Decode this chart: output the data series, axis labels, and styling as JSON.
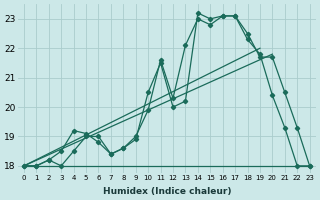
{
  "xlabel": "Humidex (Indice chaleur)",
  "bg_color": "#cce8e8",
  "line_color": "#1a6b5a",
  "grid_color": "#aacccc",
  "xlim": [
    -0.5,
    23.5
  ],
  "ylim": [
    17.75,
    23.5
  ],
  "xticks": [
    0,
    1,
    2,
    3,
    4,
    5,
    6,
    7,
    8,
    9,
    10,
    11,
    12,
    13,
    14,
    15,
    16,
    17,
    18,
    19,
    20,
    21,
    22,
    23
  ],
  "yticks": [
    18,
    19,
    20,
    21,
    22,
    23
  ],
  "series1_x": [
    0,
    1,
    2,
    3,
    4,
    5,
    6,
    7,
    8,
    9,
    10,
    11,
    12,
    13,
    14,
    15,
    16,
    17,
    18,
    19,
    20,
    21,
    22,
    23
  ],
  "series1_y": [
    18.0,
    18.0,
    18.2,
    18.0,
    18.5,
    19.0,
    19.0,
    18.4,
    18.6,
    18.9,
    20.5,
    21.5,
    20.0,
    20.2,
    23.2,
    23.0,
    23.1,
    23.1,
    22.3,
    21.8,
    20.4,
    19.3,
    18.0,
    18.0
  ],
  "series2_x": [
    0,
    1,
    2,
    3,
    4,
    5,
    6,
    7,
    8,
    9,
    10,
    11,
    12,
    13,
    14,
    15,
    16,
    17,
    18,
    19,
    20,
    21,
    22,
    23
  ],
  "series2_y": [
    18.0,
    18.0,
    18.2,
    18.5,
    19.2,
    19.1,
    18.8,
    18.4,
    18.6,
    19.0,
    19.9,
    21.6,
    20.3,
    22.1,
    23.0,
    22.8,
    23.1,
    23.1,
    22.5,
    21.7,
    21.7,
    20.5,
    19.3,
    18.0
  ],
  "trendline1_x": [
    0,
    19
  ],
  "trendline1_y": [
    18.0,
    22.0
  ],
  "trendline2_x": [
    0,
    20
  ],
  "trendline2_y": [
    18.0,
    21.8
  ],
  "hline_x": [
    0,
    23
  ],
  "hline_y": [
    18.0,
    18.0
  ]
}
